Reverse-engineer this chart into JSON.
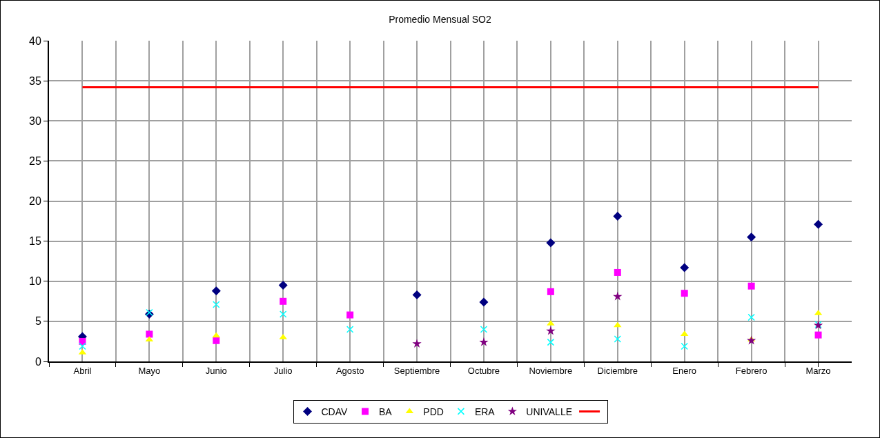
{
  "chart_data": {
    "type": "scatter",
    "title": "Promedio Mensual SO2",
    "categories": [
      "Abril",
      "Mayo",
      "Junio",
      "Julio",
      "Agosto",
      "Septiembre",
      "Octubre",
      "Noviembre",
      "Diciembre",
      "Enero",
      "Febrero",
      "Marzo"
    ],
    "series": [
      {
        "name": "CDAV",
        "color": "#000080",
        "marker": "diamond",
        "values": [
          3.1,
          5.9,
          8.8,
          9.5,
          null,
          8.3,
          7.4,
          14.8,
          18.1,
          11.7,
          15.5,
          17.1
        ]
      },
      {
        "name": "BA",
        "color": "#ff00ff",
        "marker": "square",
        "values": [
          2.5,
          3.4,
          2.6,
          7.5,
          5.8,
          null,
          null,
          8.7,
          11.1,
          8.5,
          9.4,
          3.3
        ]
      },
      {
        "name": "PDD",
        "color": "#ffff00",
        "marker": "triangle",
        "values": [
          1.1,
          2.7,
          3.2,
          3.0,
          null,
          null,
          null,
          4.7,
          4.5,
          3.4,
          2.7,
          6.0
        ]
      },
      {
        "name": "ERA",
        "color": "#00ffff",
        "marker": "cross",
        "values": [
          1.9,
          6.1,
          7.1,
          5.9,
          4.0,
          null,
          4.0,
          2.4,
          2.8,
          1.9,
          5.5,
          4.6
        ]
      },
      {
        "name": "UNIVALLE",
        "color": "#800080",
        "marker": "star",
        "values": [
          null,
          null,
          null,
          null,
          null,
          2.2,
          2.4,
          3.8,
          8.1,
          null,
          2.6,
          4.5
        ]
      },
      {
        "type": "line",
        "color": "#ff0000",
        "marker": "none",
        "line_style": "solid",
        "values": [
          34.2,
          34.2,
          34.2,
          34.2,
          34.2,
          34.2,
          34.2,
          34.2,
          34.2,
          34.2,
          34.2,
          34.2
        ]
      }
    ],
    "ylim": [
      0,
      40
    ],
    "yticks": [
      0,
      5,
      10,
      15,
      20,
      25,
      30,
      35,
      40
    ],
    "grid": true,
    "legend": "bottom"
  }
}
